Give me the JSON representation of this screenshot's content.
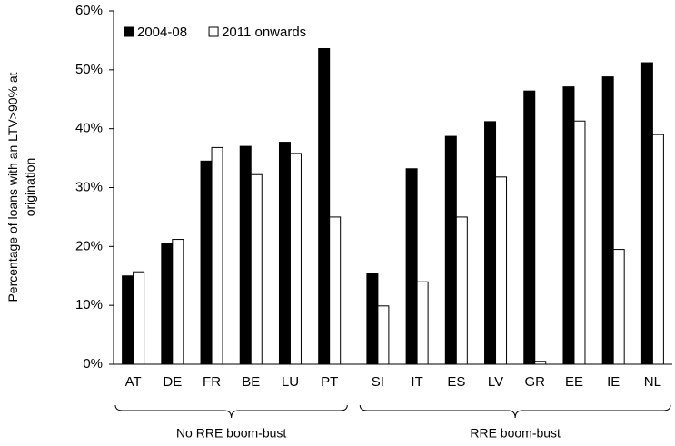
{
  "chart_data": {
    "type": "bar",
    "y_label": "Percentage of loans with an LTV>90% at origination",
    "categories": [
      "AT",
      "DE",
      "FR",
      "BE",
      "LU",
      "PT",
      "SI",
      "IT",
      "ES",
      "LV",
      "GR",
      "EE",
      "IE",
      "NL"
    ],
    "series": [
      {
        "name": "2004-08",
        "color": "#000000",
        "values": [
          15.0,
          20.5,
          34.5,
          37.0,
          37.7,
          53.6,
          15.5,
          33.2,
          38.7,
          41.2,
          46.4,
          47.1,
          48.8,
          51.2
        ]
      },
      {
        "name": "2011 onwards",
        "color": "#ffffff",
        "values": [
          15.7,
          21.2,
          36.8,
          32.2,
          35.8,
          25.0,
          9.9,
          14.0,
          25.0,
          31.8,
          0.5,
          41.3,
          19.5,
          39.0
        ]
      }
    ],
    "ylim": [
      0,
      60
    ],
    "yticks": [
      {
        "value": 0,
        "label": "0%"
      },
      {
        "value": 10,
        "label": "10%"
      },
      {
        "value": 20,
        "label": "20%"
      },
      {
        "value": 30,
        "label": "30%"
      },
      {
        "value": 40,
        "label": "40%"
      },
      {
        "value": 50,
        "label": "50%"
      },
      {
        "value": 60,
        "label": "60%"
      }
    ],
    "group_labels": [
      "No RRE boom-bust",
      "RRE boom-bust"
    ],
    "legend": "top-left"
  }
}
